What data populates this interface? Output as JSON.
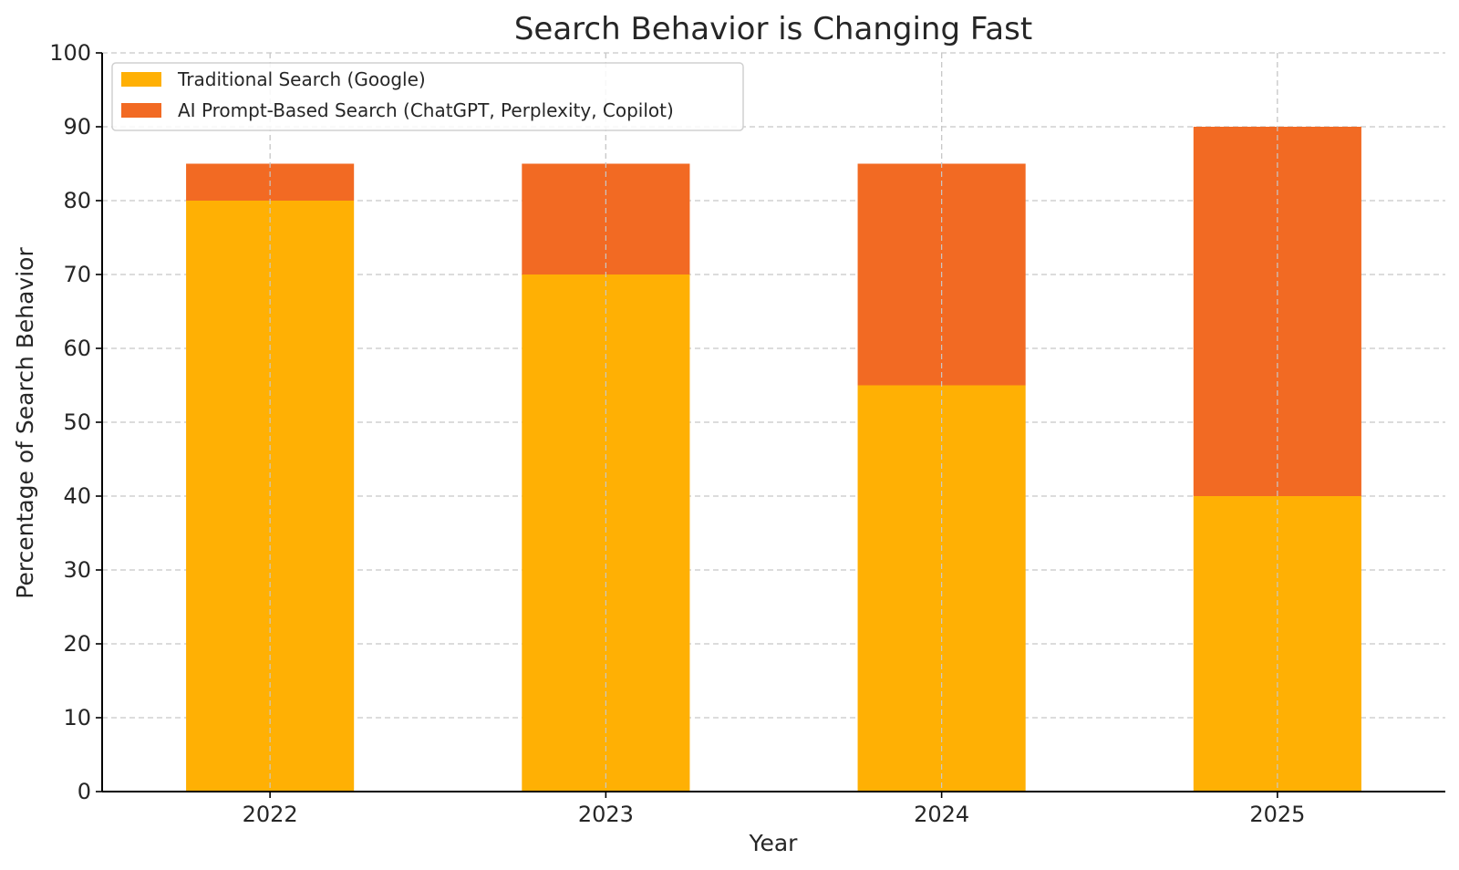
{
  "chart_data": {
    "type": "bar",
    "stacked": true,
    "title": "Search Behavior is Changing Fast",
    "xlabel": "Year",
    "ylabel": "Percentage of Search Behavior",
    "categories": [
      "2022",
      "2023",
      "2024",
      "2025"
    ],
    "ylim": [
      0,
      100
    ],
    "yticks": [
      0,
      10,
      20,
      30,
      40,
      50,
      60,
      70,
      80,
      90,
      100
    ],
    "grid": true,
    "legend_position": "top-left",
    "series": [
      {
        "name": "Traditional Search (Google)",
        "values": [
          80,
          70,
          55,
          40
        ],
        "color": "#FFB004"
      },
      {
        "name": "AI Prompt-Based Search (ChatGPT, Perplexity, Copilot)",
        "values": [
          5,
          15,
          30,
          50
        ],
        "color": "#F26A23"
      }
    ]
  }
}
